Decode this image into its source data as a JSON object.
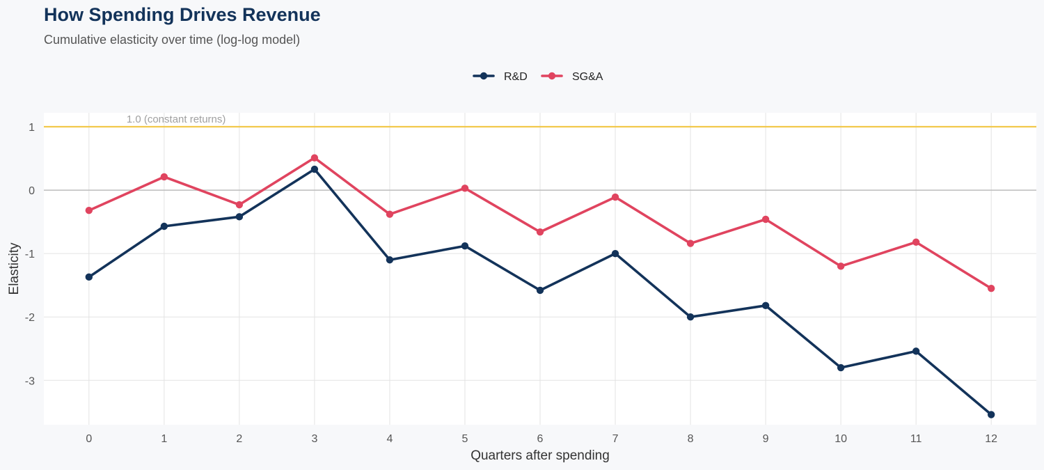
{
  "title": "How Spending Drives Revenue",
  "subtitle": "Cumulative elasticity over time (log-log model)",
  "chart_data": {
    "type": "line",
    "title": "How Spending Drives Revenue",
    "subtitle": "Cumulative elasticity over time (log-log model)",
    "xlabel": "Quarters after spending",
    "ylabel": "Elasticity",
    "x": [
      0,
      1,
      2,
      3,
      4,
      5,
      6,
      7,
      8,
      9,
      10,
      11,
      12
    ],
    "y_ticks": [
      1,
      0,
      -1,
      -2,
      -3
    ],
    "ylim": [
      -3.7,
      1.22
    ],
    "xlim": [
      -0.6,
      12.6
    ],
    "grid": true,
    "legend_position": "top-center",
    "series": [
      {
        "name": "R&D",
        "color": "#13335a",
        "values": [
          -1.37,
          -0.57,
          -0.42,
          0.33,
          -1.1,
          -0.88,
          -1.58,
          -1.0,
          -2.0,
          -1.82,
          -2.8,
          -2.54,
          -3.54
        ]
      },
      {
        "name": "SG&A",
        "color": "#e0445f",
        "values": [
          -0.32,
          0.21,
          -0.23,
          0.51,
          -0.38,
          0.03,
          -0.66,
          -0.11,
          -0.84,
          -0.46,
          -1.2,
          -0.82,
          -1.55
        ]
      }
    ],
    "reference_lines": [
      {
        "y": 1,
        "label": "1.0 (constant returns)",
        "color": "#f2c94c"
      },
      {
        "y": 0,
        "label": "",
        "color": "#bdbdbd"
      }
    ]
  }
}
